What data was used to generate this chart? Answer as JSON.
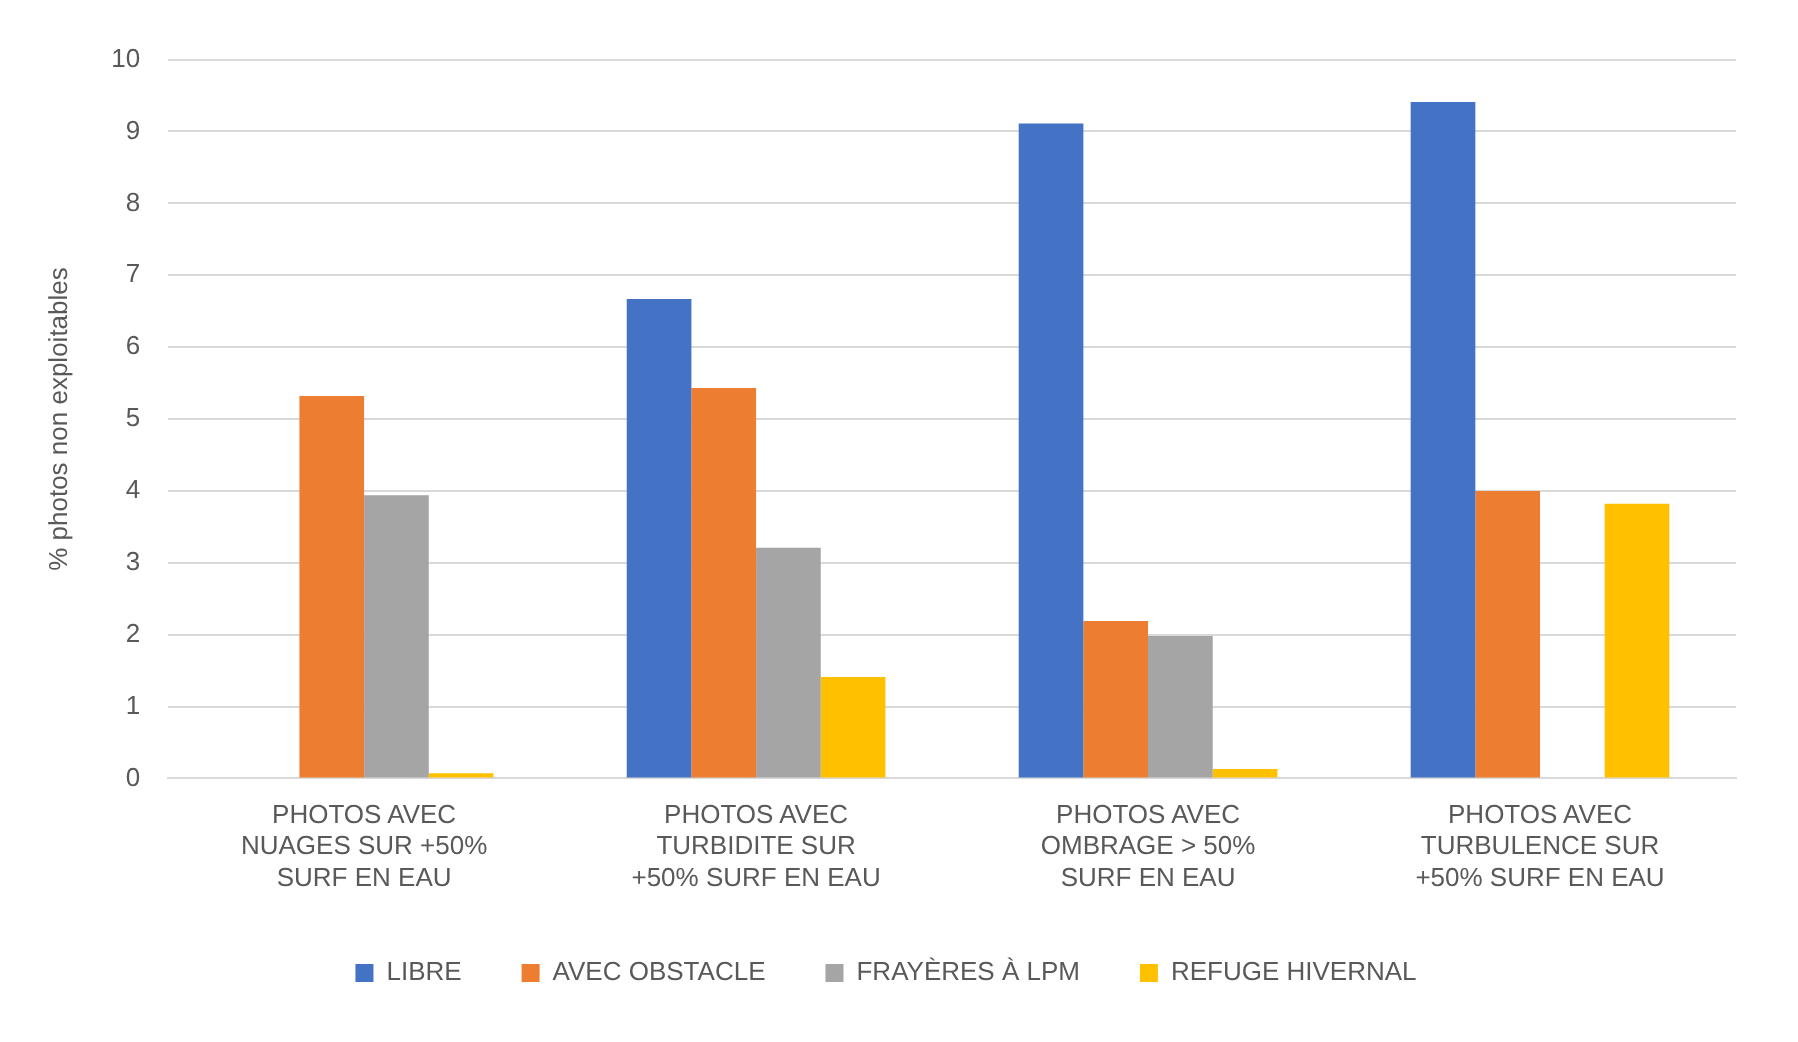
{
  "chart_data": {
    "type": "bar",
    "ylabel": "% photos non exploitables",
    "categories": [
      "PHOTOS AVEC NUAGES SUR +50% SURF EN EAU",
      "PHOTOS AVEC TURBIDITE SUR +50% SURF EN EAU",
      "PHOTOS AVEC OMBRAGE > 50% SURF EN EAU",
      "PHOTOS AVEC TURBULENCE SUR +50% SURF EN EAU"
    ],
    "series": [
      {
        "name": "LIBRE",
        "color": "#4472c4",
        "values": [
          0,
          6.67,
          9.11,
          9.41
        ]
      },
      {
        "name": "AVEC OBSTACLE",
        "color": "#ed7d31",
        "values": [
          5.32,
          5.43,
          2.19,
          4.0
        ]
      },
      {
        "name": "FRAYÈRES À LPM",
        "color": "#a5a5a5",
        "values": [
          3.94,
          3.21,
          1.98,
          0
        ]
      },
      {
        "name": "REFUGE HIVERNAL",
        "color": "#ffc000",
        "values": [
          0.07,
          1.41,
          0.13,
          3.82
        ]
      }
    ],
    "ylim": [
      0,
      10
    ],
    "yticks": [
      0,
      1,
      2,
      3,
      4,
      5,
      6,
      7,
      8,
      9,
      10
    ],
    "grid": "y",
    "legend": "bottom"
  }
}
